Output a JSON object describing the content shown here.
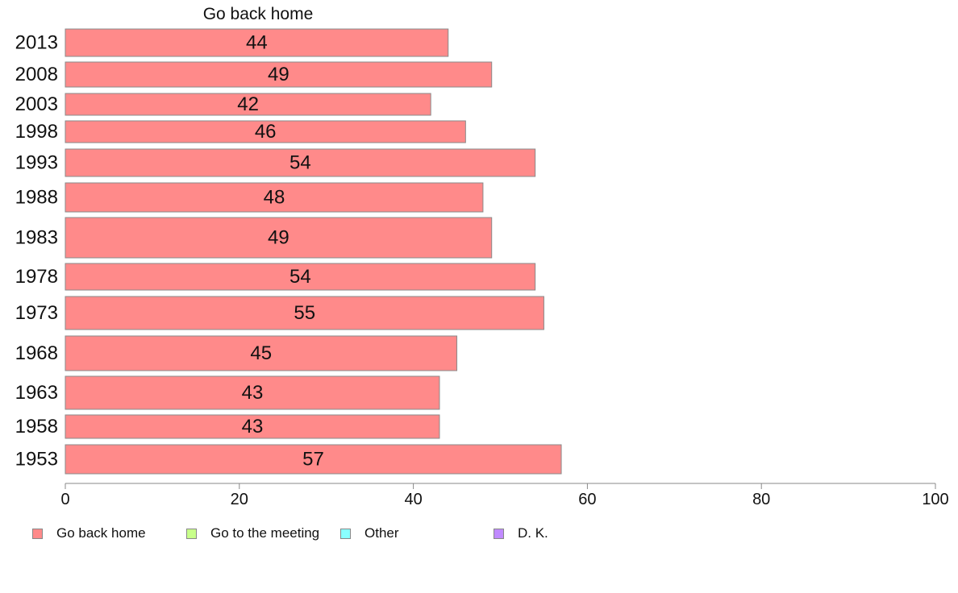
{
  "chart_data": {
    "type": "bar",
    "orientation": "horizontal",
    "title": "Go back home",
    "categories": [
      "2013",
      "2008",
      "2003",
      "1998",
      "1993",
      "1988",
      "1983",
      "1978",
      "1973",
      "1968",
      "1963",
      "1958",
      "1953"
    ],
    "series": [
      {
        "name": "Go back home",
        "color": "#ff8a8a",
        "values": [
          44,
          49,
          42,
          46,
          54,
          48,
          49,
          54,
          55,
          45,
          43,
          43,
          57
        ]
      }
    ],
    "xlim": [
      0,
      100
    ],
    "xticks": [
      0,
      20,
      40,
      60,
      80,
      100
    ],
    "grid": false,
    "legend_position": "bottom",
    "legend": [
      {
        "label": "Go back home",
        "color": "#ff8a8a"
      },
      {
        "label": "Go to the meeting",
        "color": "#c8ff8a"
      },
      {
        "label": "Other",
        "color": "#8affff"
      },
      {
        "label": "D. K.",
        "color": "#c08aff"
      }
    ]
  }
}
